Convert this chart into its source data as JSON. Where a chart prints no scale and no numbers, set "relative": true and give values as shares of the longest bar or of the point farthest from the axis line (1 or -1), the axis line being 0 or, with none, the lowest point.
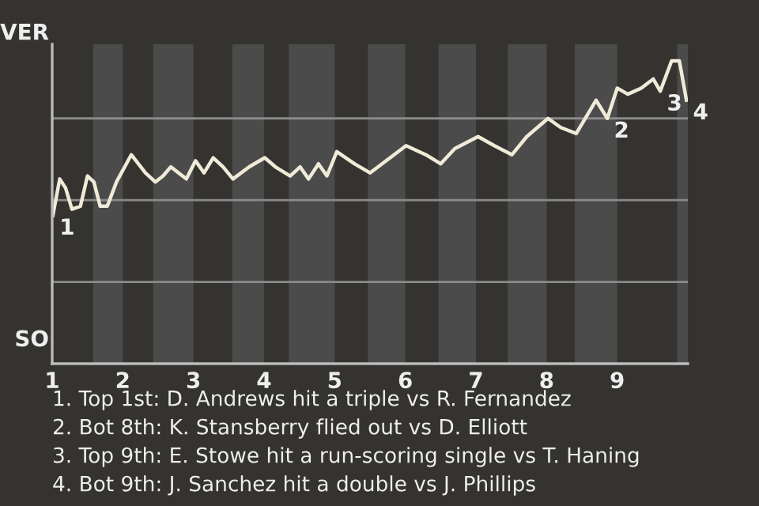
{
  "chart_data": {
    "type": "line",
    "relative": true,
    "x": [
      1.01,
      1.107,
      1.19,
      1.28,
      1.4,
      1.5,
      1.59,
      1.68,
      1.78,
      1.91,
      2.12,
      2.32,
      2.46,
      2.57,
      2.68,
      2.79,
      2.9,
      3.03,
      3.15,
      3.28,
      3.42,
      3.56,
      3.79,
      4.01,
      4.16,
      4.37,
      4.51,
      4.63,
      4.77,
      4.89,
      5.03,
      5.28,
      5.5,
      6.01,
      6.29,
      6.5,
      6.7,
      7.03,
      7.26,
      7.51,
      7.72,
      8.02,
      8.2,
      8.42,
      8.7,
      8.86,
      9.0,
      9.15,
      9.34,
      9.51,
      9.61,
      9.77,
      9.88,
      9.98
    ],
    "series": [
      {
        "color": "#f0ead8",
        "values": [
          0.49,
          0.61,
          0.58,
          0.51,
          0.52,
          0.62,
          0.6,
          0.52,
          0.52,
          0.6,
          0.69,
          0.63,
          0.6,
          0.62,
          0.65,
          0.63,
          0.61,
          0.67,
          0.63,
          0.68,
          0.65,
          0.61,
          0.65,
          0.68,
          0.65,
          0.62,
          0.65,
          0.61,
          0.66,
          0.62,
          0.7,
          0.66,
          0.63,
          0.72,
          0.69,
          0.66,
          0.71,
          0.75,
          0.72,
          0.69,
          0.75,
          0.81,
          0.78,
          0.76,
          0.87,
          0.81,
          0.91,
          0.89,
          0.91,
          0.94,
          0.9,
          1,
          1,
          0.87
        ]
      }
    ],
    "xlim": [
      1,
      10
    ],
    "xticks": [
      1,
      2,
      3,
      4,
      5,
      6,
      7,
      8,
      9
    ],
    "marker": "none",
    "line_style": "solid",
    "ref_lines": [
      {
        "axis": "y",
        "value": 0.27,
        "color": "#8a8a8a"
      },
      {
        "axis": "y",
        "value": 0.54,
        "color": "#8a8a8a"
      },
      {
        "axis": "y",
        "value": 0.81,
        "color": "#8a8a8a"
      }
    ],
    "bands": [
      {
        "axis": "x",
        "from": 1.58,
        "to": 2,
        "color": "#4b4b4b"
      },
      {
        "axis": "x",
        "from": 2.43,
        "to": 3,
        "color": "#4b4b4b"
      },
      {
        "axis": "x",
        "from": 3.55,
        "to": 4,
        "color": "#4b4b4b"
      },
      {
        "axis": "x",
        "from": 4.35,
        "to": 5,
        "color": "#4b4b4b"
      },
      {
        "axis": "x",
        "from": 5.47,
        "to": 6,
        "color": "#4b4b4b"
      },
      {
        "axis": "x",
        "from": 6.47,
        "to": 7,
        "color": "#4b4b4b"
      },
      {
        "axis": "x",
        "from": 7.45,
        "to": 8,
        "color": "#4b4b4b"
      },
      {
        "axis": "x",
        "from": 8.4,
        "to": 9,
        "color": "#4b4b4b"
      },
      {
        "axis": "x",
        "from": 9.85,
        "to": 10,
        "color": "#4b4b4b"
      }
    ],
    "annotations": [
      {
        "text": "1",
        "x": 1.01,
        "y": 0.49
      },
      {
        "text": "2",
        "x": 8.86,
        "y": 0.81
      },
      {
        "text": "3",
        "x": 9.61,
        "y": 0.9
      },
      {
        "text": "4",
        "x": 9.98,
        "y": 0.87
      },
      "VER",
      "SO",
      "1. Top 1st: D. Andrews hit a triple vs R. Fernandez",
      "2. Bot 8th: K. Stansberry flied out vs D. Elliott",
      "3. Top 9th: E. Stowe hit a run-scoring single vs T. Haning",
      "4. Bot 9th: J. Sanchez hit a double vs J. Phillips"
    ]
  }
}
